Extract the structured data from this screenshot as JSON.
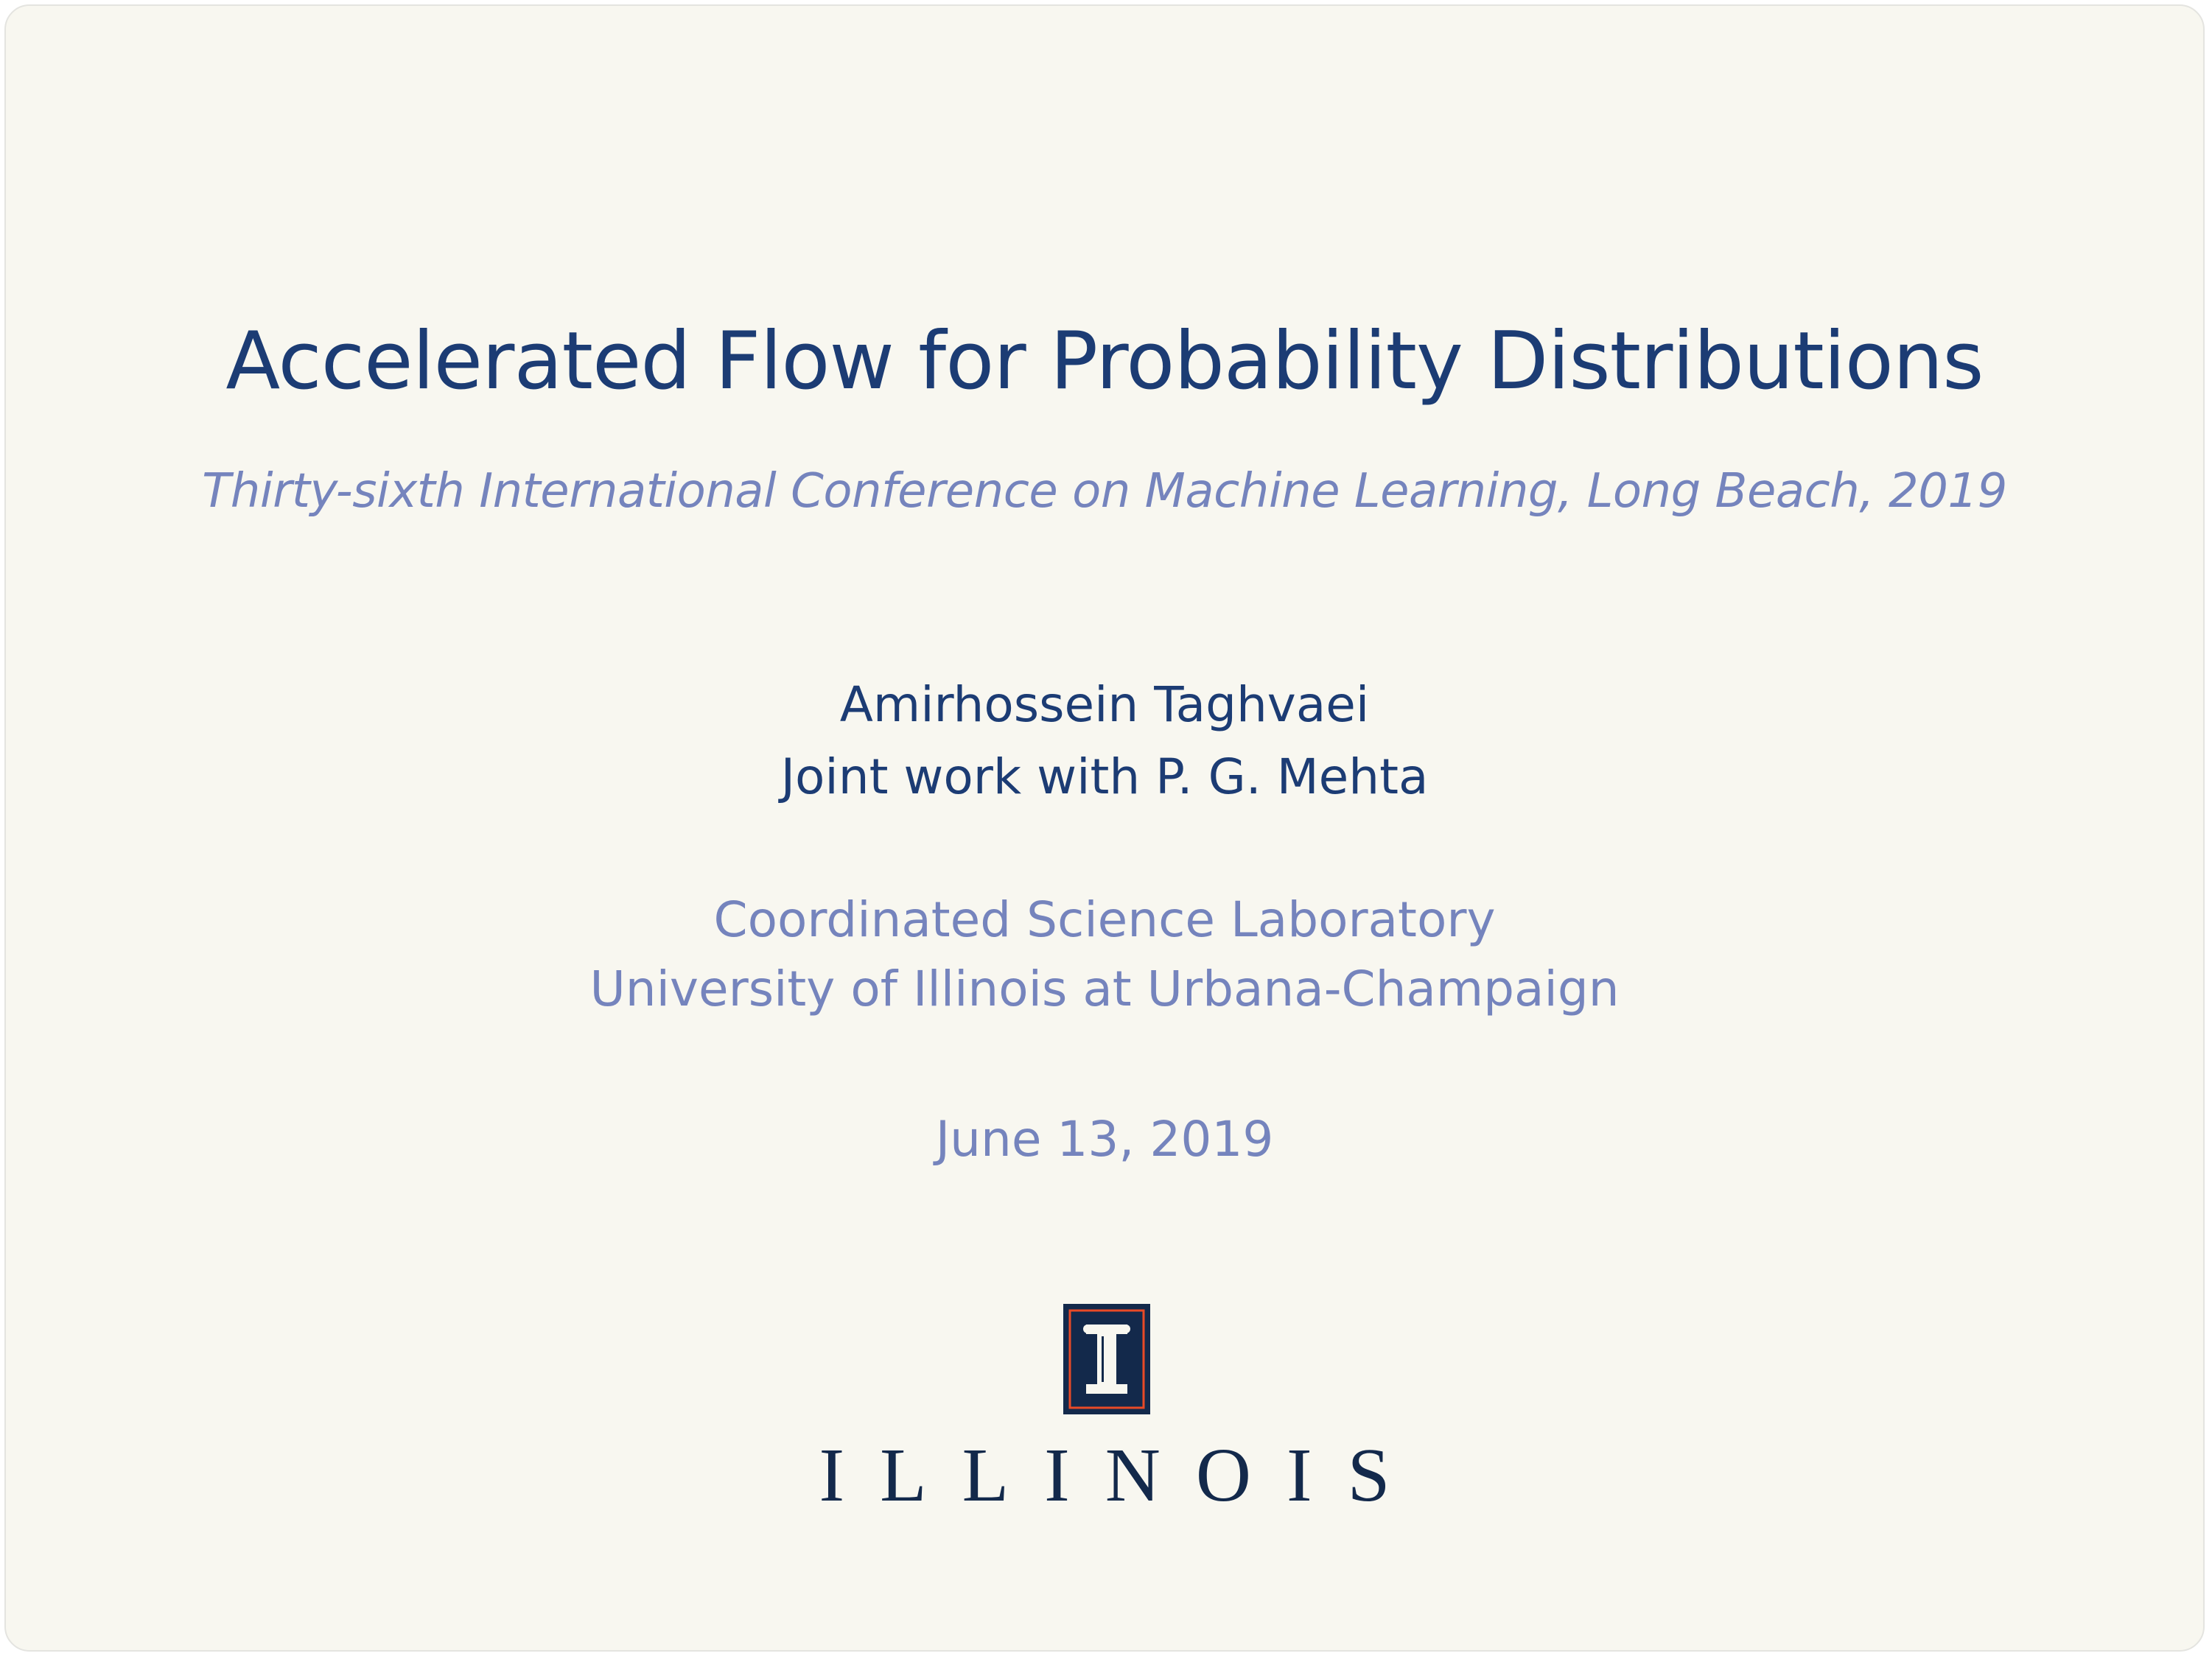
{
  "slide": {
    "title": "Accelerated Flow for Probability Distributions",
    "subtitle": "Thirty-sixth International Conference on Machine Learning, Long Beach, 2019",
    "author": "Amirhossein Taghvaei",
    "joint_work": "Joint work with P. G. Mehta",
    "institute_line1": "Coordinated Science Laboratory",
    "institute_line2": "University of Illinois at Urbana-Champaign",
    "date": "June 13, 2019"
  },
  "logo": {
    "wordmark": "ILLINOIS",
    "icon": "illinois-block-i-icon",
    "colors": {
      "navy": "#13294b",
      "orange": "#e84a27"
    }
  },
  "colors": {
    "background": "#f8f7f0",
    "title": "#1c3c74",
    "accent": "#7584bd"
  }
}
